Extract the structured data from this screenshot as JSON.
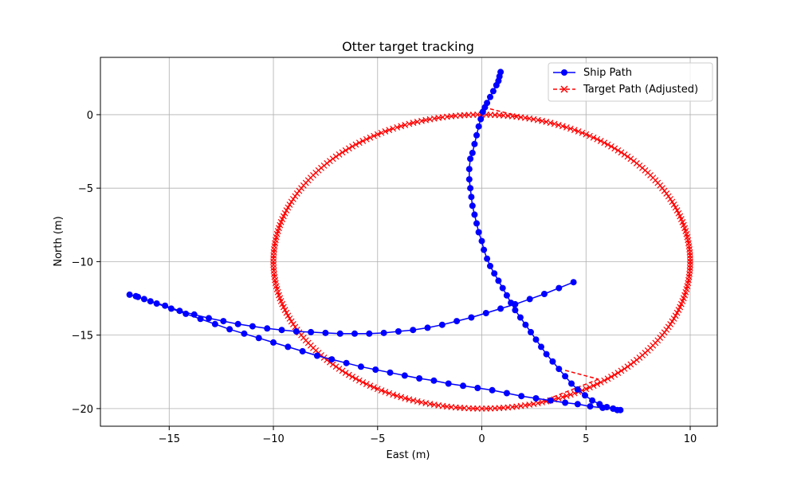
{
  "chart_data": {
    "type": "line",
    "title": "Otter target tracking",
    "xlabel": "East (m)",
    "ylabel": "North (m)",
    "xlim": [
      -18.3,
      11.3
    ],
    "ylim": [
      -21.2,
      3.9
    ],
    "xticks": [
      -15,
      -10,
      -5,
      0,
      5,
      10
    ],
    "yticks": [
      0,
      -5,
      -10,
      -15,
      -20
    ],
    "xtick_labels": [
      "−15",
      "−10",
      "−5",
      "0",
      "5",
      "10"
    ],
    "ytick_labels": [
      "0",
      "−5",
      "−10",
      "−15",
      "−20"
    ],
    "grid": true,
    "legend_position": "top-right",
    "series": [
      {
        "name": "Ship Path",
        "color": "#0000ff",
        "style": "solid",
        "marker": "circle",
        "points": [
          [
            0.9,
            2.9
          ],
          [
            0.85,
            2.6
          ],
          [
            0.8,
            2.3
          ],
          [
            0.7,
            2.0
          ],
          [
            0.55,
            1.6
          ],
          [
            0.4,
            1.2
          ],
          [
            0.25,
            0.8
          ],
          [
            0.15,
            0.5
          ],
          [
            0.05,
            0.2
          ],
          [
            -0.05,
            -0.3
          ],
          [
            -0.15,
            -0.8
          ],
          [
            -0.25,
            -1.4
          ],
          [
            -0.35,
            -2.0
          ],
          [
            -0.45,
            -2.6
          ],
          [
            -0.55,
            -3.0
          ],
          [
            -0.6,
            -3.7
          ],
          [
            -0.6,
            -4.4
          ],
          [
            -0.55,
            -5.0
          ],
          [
            -0.5,
            -5.6
          ],
          [
            -0.45,
            -6.2
          ],
          [
            -0.35,
            -6.8
          ],
          [
            -0.25,
            -7.4
          ],
          [
            -0.15,
            -8.0
          ],
          [
            0.0,
            -8.6
          ],
          [
            0.1,
            -9.2
          ],
          [
            0.25,
            -9.8
          ],
          [
            0.4,
            -10.3
          ],
          [
            0.6,
            -10.8
          ],
          [
            0.8,
            -11.3
          ],
          [
            1.0,
            -11.8
          ],
          [
            1.2,
            -12.3
          ],
          [
            1.4,
            -12.8
          ],
          [
            1.6,
            -13.3
          ],
          [
            1.85,
            -13.8
          ],
          [
            2.1,
            -14.3
          ],
          [
            2.35,
            -14.8
          ],
          [
            2.6,
            -15.3
          ],
          [
            2.85,
            -15.8
          ],
          [
            3.1,
            -16.3
          ],
          [
            3.4,
            -16.8
          ],
          [
            3.7,
            -17.3
          ],
          [
            4.0,
            -17.8
          ],
          [
            4.3,
            -18.3
          ],
          [
            4.6,
            -18.7
          ],
          [
            4.95,
            -19.1
          ],
          [
            5.3,
            -19.45
          ],
          [
            5.65,
            -19.7
          ],
          [
            6.0,
            -19.9
          ],
          [
            6.3,
            -20.0
          ],
          [
            6.5,
            -20.1
          ],
          [
            6.65,
            -20.1
          ],
          [
            6.3,
            -20.0
          ],
          [
            5.8,
            -19.95
          ],
          [
            5.2,
            -19.85
          ],
          [
            4.6,
            -19.7
          ],
          [
            4.0,
            -19.6
          ],
          [
            3.3,
            -19.45
          ],
          [
            2.6,
            -19.3
          ],
          [
            1.9,
            -19.15
          ],
          [
            1.2,
            -18.95
          ],
          [
            0.5,
            -18.75
          ],
          [
            -0.2,
            -18.6
          ],
          [
            -0.9,
            -18.45
          ],
          [
            -1.6,
            -18.3
          ],
          [
            -2.3,
            -18.1
          ],
          [
            -3.0,
            -17.95
          ],
          [
            -3.7,
            -17.75
          ],
          [
            -4.4,
            -17.55
          ],
          [
            -5.1,
            -17.35
          ],
          [
            -5.8,
            -17.15
          ],
          [
            -6.5,
            -16.9
          ],
          [
            -7.2,
            -16.65
          ],
          [
            -7.9,
            -16.4
          ],
          [
            -8.6,
            -16.1
          ],
          [
            -9.3,
            -15.8
          ],
          [
            -10.0,
            -15.5
          ],
          [
            -10.7,
            -15.2
          ],
          [
            -11.4,
            -14.9
          ],
          [
            -12.1,
            -14.6
          ],
          [
            -12.8,
            -14.25
          ],
          [
            -13.5,
            -13.9
          ],
          [
            -14.2,
            -13.55
          ],
          [
            -14.9,
            -13.2
          ],
          [
            -15.6,
            -12.85
          ],
          [
            -16.2,
            -12.55
          ],
          [
            -16.6,
            -12.35
          ],
          [
            -16.9,
            -12.25
          ],
          [
            -16.5,
            -12.4
          ],
          [
            -15.9,
            -12.7
          ],
          [
            -15.2,
            -13.0
          ],
          [
            -14.5,
            -13.35
          ],
          [
            -13.8,
            -13.6
          ],
          [
            -13.1,
            -13.85
          ],
          [
            -12.4,
            -14.05
          ],
          [
            -11.7,
            -14.25
          ],
          [
            -11.0,
            -14.4
          ],
          [
            -10.3,
            -14.55
          ],
          [
            -9.6,
            -14.65
          ],
          [
            -8.9,
            -14.75
          ],
          [
            -8.2,
            -14.8
          ],
          [
            -7.5,
            -14.85
          ],
          [
            -6.8,
            -14.9
          ],
          [
            -6.1,
            -14.9
          ],
          [
            -5.4,
            -14.9
          ],
          [
            -4.7,
            -14.85
          ],
          [
            -4.0,
            -14.75
          ],
          [
            -3.3,
            -14.65
          ],
          [
            -2.6,
            -14.5
          ],
          [
            -1.9,
            -14.3
          ],
          [
            -1.2,
            -14.05
          ],
          [
            -0.5,
            -13.8
          ],
          [
            0.2,
            -13.5
          ],
          [
            0.9,
            -13.2
          ],
          [
            1.6,
            -12.9
          ],
          [
            2.3,
            -12.55
          ],
          [
            3.0,
            -12.2
          ],
          [
            3.7,
            -11.8
          ],
          [
            4.4,
            -11.4
          ]
        ]
      },
      {
        "name": "Target Path (Adjusted)",
        "color": "#ff0000",
        "style": "dashed",
        "marker": "x",
        "shape": {
          "kind": "ellipse",
          "center": [
            0,
            -10
          ],
          "radius_x": 10,
          "radius_y": 10,
          "count": 300
        },
        "connectors": [
          {
            "from": [
              0.1,
              0.5
            ],
            "to": [
              1.8,
              -0.1
            ]
          },
          {
            "from": [
              4.0,
              -17.4
            ],
            "to": [
              5.6,
              -18.0
            ]
          },
          {
            "from": [
              5.6,
              -18.0
            ],
            "to": [
              2.9,
              -19.5
            ]
          }
        ]
      }
    ]
  }
}
